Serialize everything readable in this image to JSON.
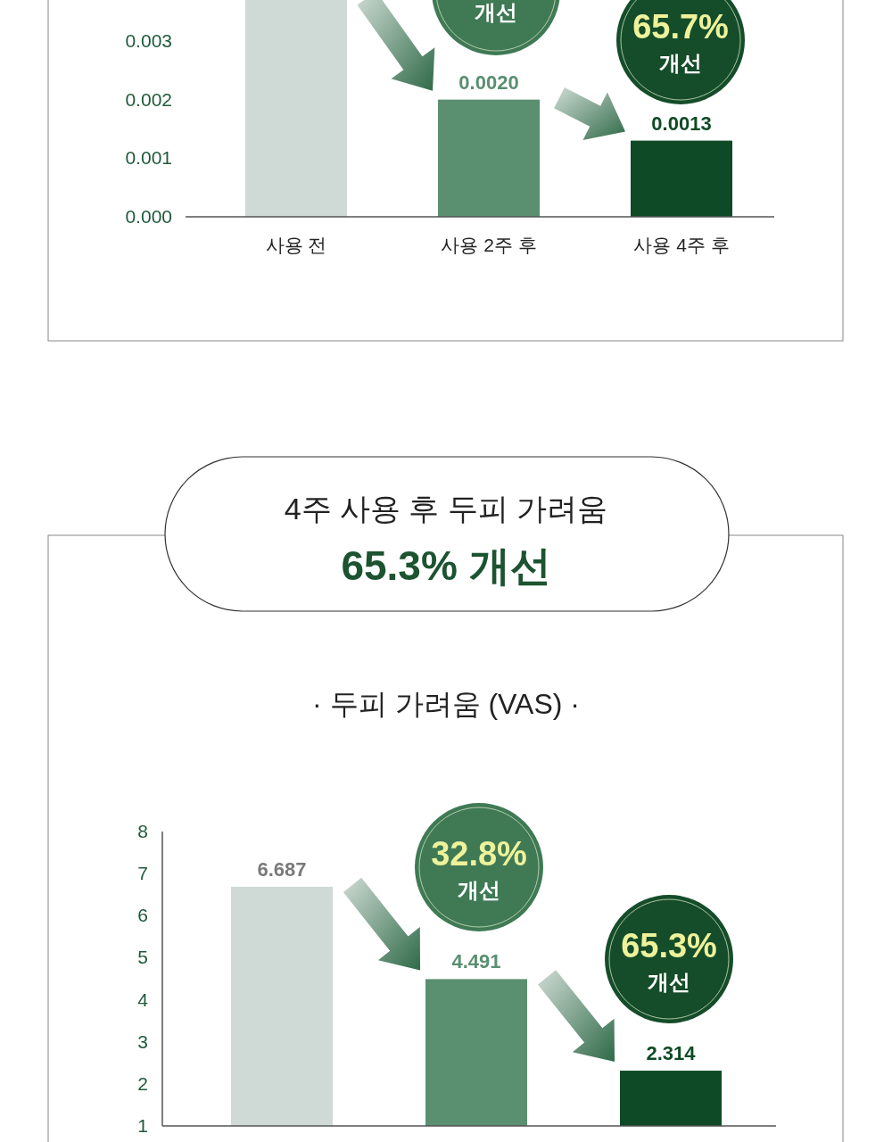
{
  "chart_data": [
    {
      "type": "bar",
      "categories": [
        "사용 전",
        "사용 2주 후",
        "사용 4주 후"
      ],
      "values": [
        0.0037,
        0.002,
        0.0013
      ],
      "colors": [
        "#cfdad6",
        "#5a8f70",
        "#0f4a26"
      ],
      "ylim": [
        0,
        0.0037
      ],
      "yticks": [
        {
          "value": 0,
          "label": "0.000"
        },
        {
          "value": 0.001,
          "label": "0.001"
        },
        {
          "value": 0.002,
          "label": "0.002"
        },
        {
          "value": 0.003,
          "label": "0.003"
        }
      ],
      "value_labels": [
        null,
        "0.0020",
        "0.0013"
      ],
      "annotations": [
        "개선",
        "65.7%\n개선"
      ]
    },
    {
      "type": "bar",
      "title": "4주 사용 후 두피 가려움",
      "subtitle": "65.3% 개선",
      "categories": [
        null,
        null,
        null
      ],
      "values": [
        6.687,
        4.491,
        2.314
      ],
      "colors": [
        "#cfdad6",
        "#5a8f70",
        "#0f4a26"
      ],
      "ylim": [
        1,
        8
      ],
      "yticks": [
        1,
        2,
        3,
        4,
        5,
        6,
        7,
        8
      ],
      "data_labels": true,
      "tick_labels": "y",
      "annotations": [
        "·  두피 가려움 (VAS)  ·",
        "32.8%\n개선",
        "65.3%\n개선"
      ]
    }
  ]
}
